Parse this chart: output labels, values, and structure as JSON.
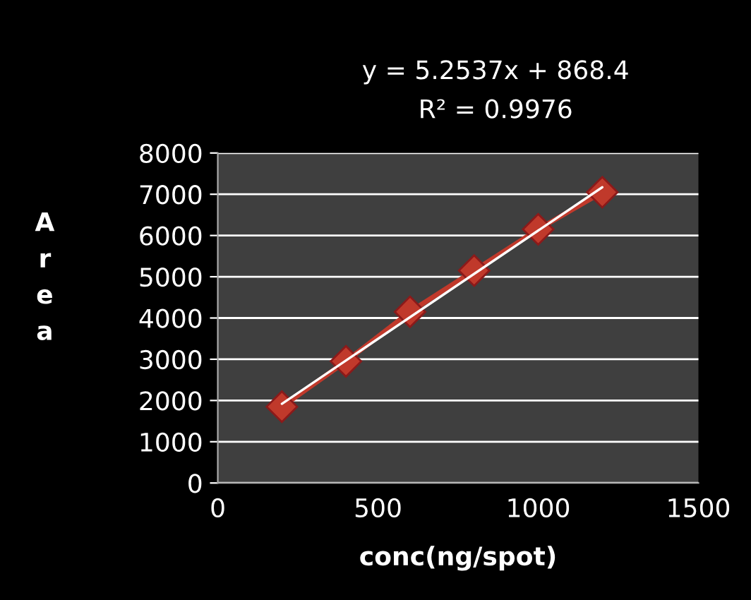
{
  "chart_data": {
    "type": "line",
    "xlabel": "conc(ng/spot)",
    "ylabel": "Area",
    "annotations": [
      "y = 5.2537x + 868.4",
      "R² = 0.9976"
    ],
    "series": [
      {
        "color": "#c0392b",
        "marker": "diamond",
        "x": [
          200,
          400,
          600,
          800,
          1000,
          1200
        ],
        "values": [
          1850,
          2950,
          4150,
          5150,
          6150,
          7050
        ]
      },
      {
        "type": "line",
        "color": "#ffffff",
        "marker": "none",
        "x": [
          200,
          1200
        ],
        "values": [
          1920,
          7170
        ]
      }
    ],
    "xlim": [
      0,
      1500
    ],
    "xticks": [
      0,
      500,
      1000,
      1500
    ],
    "ylim": [
      0,
      8000
    ],
    "yticks": [
      0,
      1000,
      2000,
      3000,
      4000,
      5000,
      6000,
      7000,
      8000
    ],
    "grid": "y",
    "legend": false
  }
}
